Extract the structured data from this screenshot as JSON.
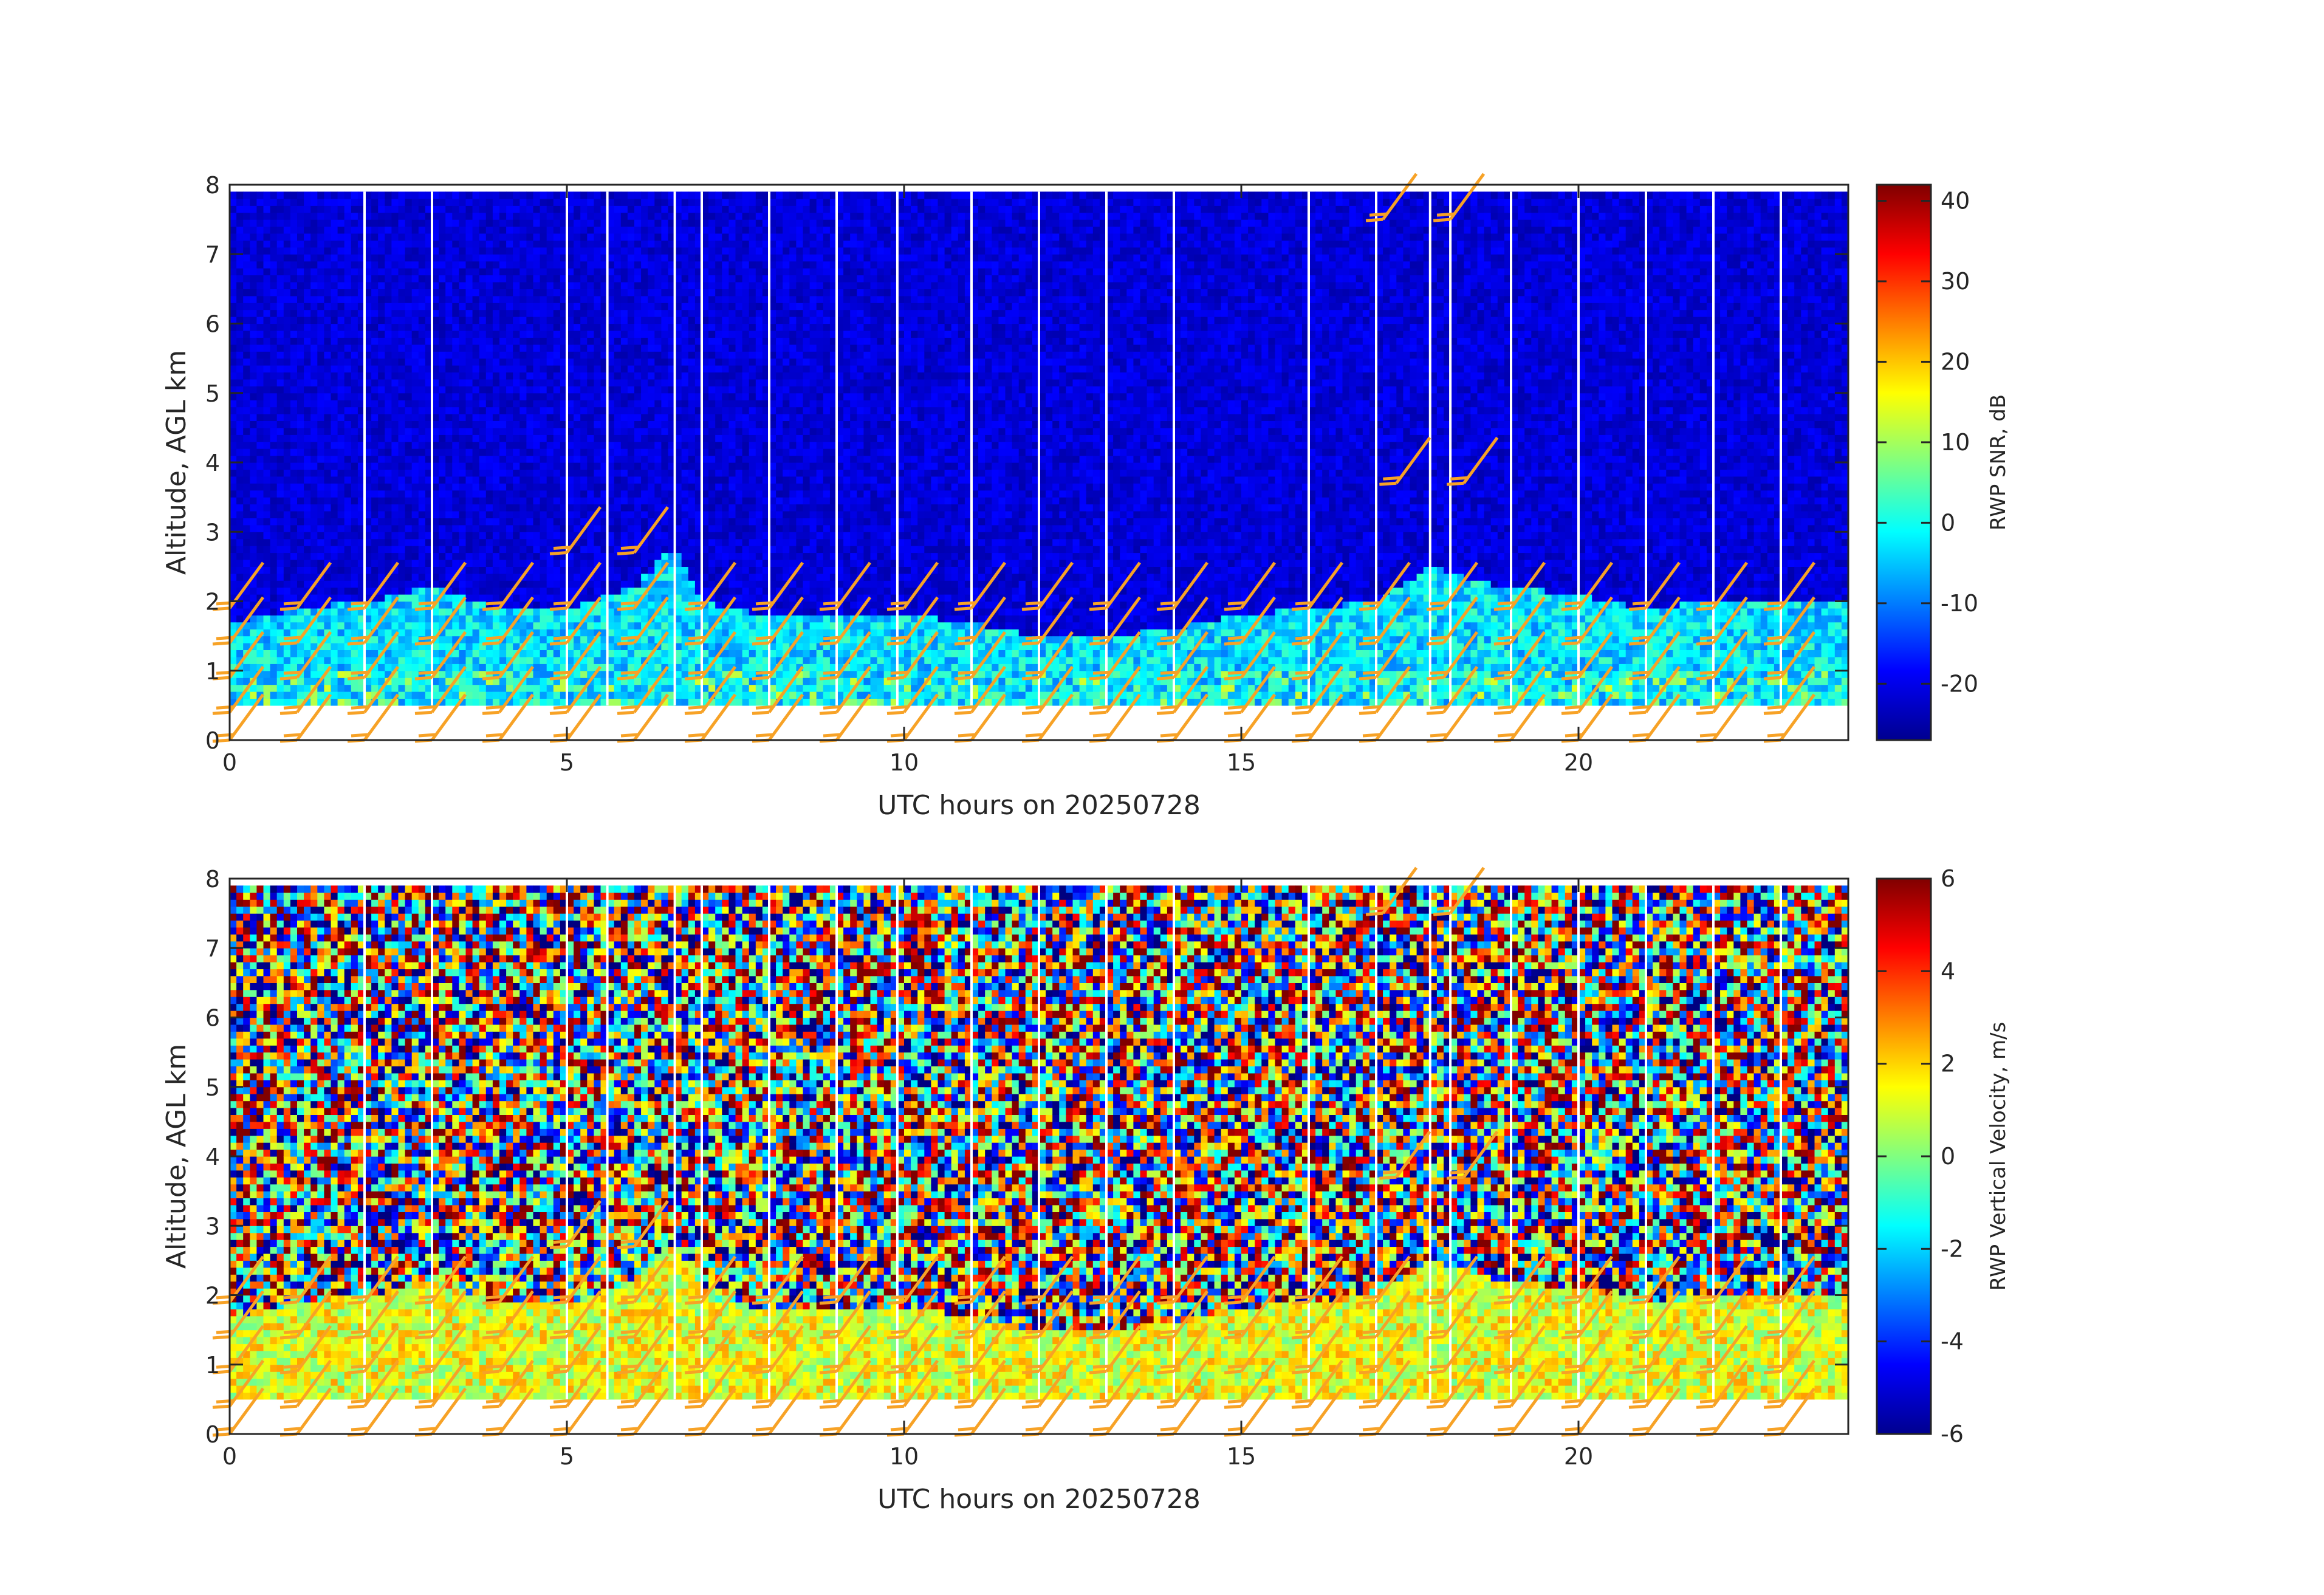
{
  "chart_data": [
    {
      "type": "heatmap",
      "title": "",
      "xlabel": "UTC hours on 20250728",
      "ylabel": "Altitude, AGL km",
      "xlim": [
        0,
        24
      ],
      "ylim": [
        0,
        8
      ],
      "x_ticks": [
        0,
        5,
        10,
        15,
        20
      ],
      "y_ticks": [
        0,
        1,
        2,
        3,
        4,
        5,
        6,
        7,
        8
      ],
      "colorbar": {
        "label": "RWP SNR, dB",
        "range": [
          -27,
          42
        ],
        "ticks": [
          40,
          30,
          20,
          10,
          0,
          -10,
          -20
        ],
        "colormap": "jet"
      },
      "field": "snr",
      "data_layer": {
        "altitude_range_km": [
          0.5,
          7.9
        ],
        "boundary_layer_top_km": [
          [
            0,
            1.7
          ],
          [
            1,
            1.9
          ],
          [
            2,
            2.0
          ],
          [
            3,
            2.2
          ],
          [
            4,
            1.9
          ],
          [
            5,
            1.9
          ],
          [
            6,
            2.2
          ],
          [
            6.6,
            2.8
          ],
          [
            7,
            2.0
          ],
          [
            8,
            1.8
          ],
          [
            9,
            1.8
          ],
          [
            10,
            1.8
          ],
          [
            11,
            1.7
          ],
          [
            12,
            1.5
          ],
          [
            13,
            1.5
          ],
          [
            14,
            1.6
          ],
          [
            15,
            1.8
          ],
          [
            16,
            1.9
          ],
          [
            17,
            2.0
          ],
          [
            17.8,
            2.5
          ],
          [
            18.5,
            2.3
          ],
          [
            19,
            2.2
          ],
          [
            20,
            2.1
          ],
          [
            21,
            1.9
          ],
          [
            22,
            2.0
          ],
          [
            24,
            2.0
          ]
        ],
        "background_snr_db": -21,
        "boundary_layer_snr_db": -3
      },
      "data_gaps_hours": [
        2.0,
        3.0,
        5.0,
        5.6,
        6.6,
        7.0,
        8.0,
        9.0,
        9.9,
        11.0,
        12.0,
        13.0,
        14.0,
        16.0,
        17.0,
        17.8,
        18.1,
        19.0,
        20.0,
        21.0,
        22.0,
        23.0
      ],
      "wind_barbs": {
        "color": "#f7a226",
        "low_columns_hours": [
          0,
          1,
          2,
          3,
          4,
          5,
          6,
          7,
          8,
          9,
          10,
          11,
          12,
          13,
          14,
          15,
          16,
          17,
          18,
          19,
          20,
          21,
          22,
          23
        ],
        "low_altitudes_km": [
          0.0,
          0.4,
          0.9,
          1.4,
          1.9
        ],
        "upper_barbs": [
          {
            "hour": 5.0,
            "alt_km": 2.7
          },
          {
            "hour": 6.0,
            "alt_km": 2.7
          },
          {
            "hour": 17.1,
            "alt_km": 7.5
          },
          {
            "hour": 18.1,
            "alt_km": 7.5
          },
          {
            "hour": 17.3,
            "alt_km": 3.7
          },
          {
            "hour": 18.3,
            "alt_km": 3.7
          }
        ]
      }
    },
    {
      "type": "heatmap",
      "title": "",
      "xlabel": "UTC hours on 20250728",
      "ylabel": "Altitude, AGL km",
      "xlim": [
        0,
        24
      ],
      "ylim": [
        0,
        8
      ],
      "x_ticks": [
        0,
        5,
        10,
        15,
        20
      ],
      "y_ticks": [
        0,
        1,
        2,
        3,
        4,
        5,
        6,
        7,
        8
      ],
      "colorbar": {
        "label": "RWP Vertical Velocity, m/s",
        "range": [
          -6,
          6
        ],
        "ticks": [
          6,
          4,
          2,
          0,
          -2,
          -4,
          -6
        ],
        "colormap": "jet"
      },
      "field": "velocity",
      "data_layer": {
        "altitude_range_km": [
          0.5,
          7.9
        ],
        "boundary_layer_top_km": [
          [
            0,
            1.7
          ],
          [
            1,
            1.9
          ],
          [
            2,
            2.0
          ],
          [
            3,
            2.2
          ],
          [
            4,
            1.9
          ],
          [
            5,
            1.9
          ],
          [
            6,
            2.2
          ],
          [
            6.6,
            2.8
          ],
          [
            7,
            2.0
          ],
          [
            8,
            1.8
          ],
          [
            9,
            1.8
          ],
          [
            10,
            1.8
          ],
          [
            11,
            1.7
          ],
          [
            12,
            1.5
          ],
          [
            13,
            1.5
          ],
          [
            14,
            1.6
          ],
          [
            15,
            1.8
          ],
          [
            16,
            1.9
          ],
          [
            17,
            2.0
          ],
          [
            17.8,
            2.5
          ],
          [
            18.5,
            2.3
          ],
          [
            19,
            2.2
          ],
          [
            20,
            2.1
          ],
          [
            21,
            1.9
          ],
          [
            22,
            2.0
          ],
          [
            24,
            2.0
          ]
        ],
        "boundary_layer_velocity_ms": 1.2,
        "noise_velocity_ms": "random"
      },
      "data_gaps_hours": [
        2.0,
        3.0,
        5.0,
        5.6,
        6.6,
        7.0,
        8.0,
        9.0,
        9.9,
        11.0,
        12.0,
        13.0,
        14.0,
        16.0,
        17.0,
        17.8,
        18.1,
        19.0,
        20.0,
        21.0,
        22.0,
        23.0
      ],
      "wind_barbs": {
        "color": "#f7a226",
        "low_columns_hours": [
          0,
          1,
          2,
          3,
          4,
          5,
          6,
          7,
          8,
          9,
          10,
          11,
          12,
          13,
          14,
          15,
          16,
          17,
          18,
          19,
          20,
          21,
          22,
          23
        ],
        "low_altitudes_km": [
          0.0,
          0.4,
          0.9,
          1.4,
          1.9
        ],
        "upper_barbs": [
          {
            "hour": 5.0,
            "alt_km": 2.7
          },
          {
            "hour": 6.0,
            "alt_km": 2.7
          },
          {
            "hour": 17.1,
            "alt_km": 7.5
          },
          {
            "hour": 18.1,
            "alt_km": 7.5
          },
          {
            "hour": 17.3,
            "alt_km": 3.7
          },
          {
            "hour": 18.3,
            "alt_km": 3.7
          }
        ]
      }
    }
  ]
}
